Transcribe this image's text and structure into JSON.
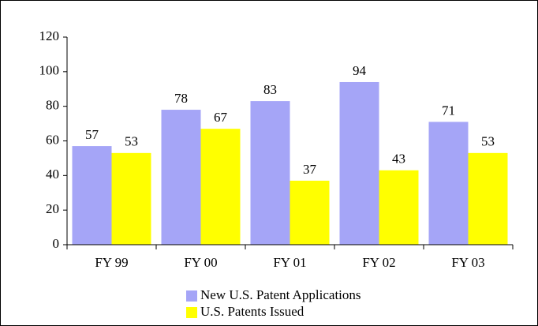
{
  "chart_data": {
    "type": "bar",
    "categories": [
      "FY 99",
      "FY 00",
      "FY 01",
      "FY 02",
      "FY 03"
    ],
    "series": [
      {
        "name": "New U.S. Patent Applications",
        "color": "#a5a5f7",
        "values": [
          57,
          78,
          83,
          94,
          71
        ]
      },
      {
        "name": "U.S. Patents Issued",
        "color": "#ffff00",
        "values": [
          53,
          67,
          37,
          43,
          53
        ]
      }
    ],
    "ylim": [
      0,
      120
    ],
    "yticks": [
      0,
      20,
      40,
      60,
      80,
      100,
      120
    ],
    "grid": false,
    "legend": "bottom"
  }
}
